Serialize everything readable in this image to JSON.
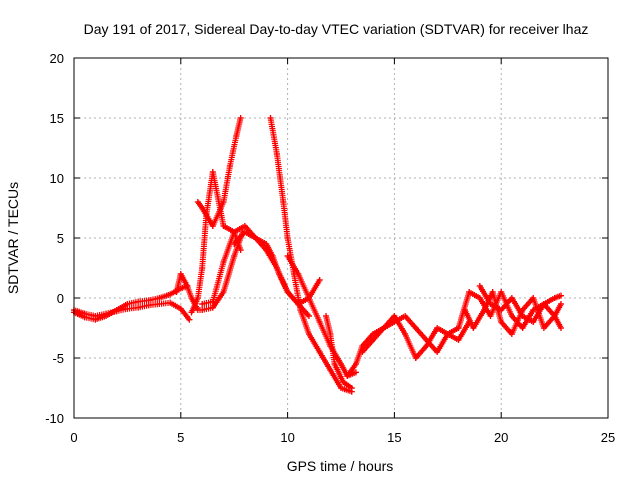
{
  "chart_data": {
    "type": "scatter",
    "title": "Day 191 of 2017, Sidereal Day-to-day VTEC variation (SDTVAR) for receiver lhaz",
    "xlabel": "GPS time / hours",
    "ylabel": "SDTVAR / TECUs",
    "xlim": [
      0,
      25
    ],
    "ylim": [
      -10,
      20
    ],
    "x_ticks": [
      0,
      5,
      10,
      15,
      20,
      25
    ],
    "y_ticks": [
      -10,
      -5,
      0,
      5,
      10,
      15,
      20
    ],
    "x_tick_labels": [
      "0",
      "5",
      "10",
      "15",
      "20",
      "25"
    ],
    "y_tick_labels": [
      "-10",
      "-5",
      "0",
      "5",
      "10",
      "15",
      "20"
    ],
    "grid": true,
    "legend": "none",
    "marker": "+",
    "color": "#ff0000",
    "series": [
      {
        "name": "track-1",
        "x": [
          0.0,
          0.5,
          1.0,
          1.5,
          2.0,
          2.5,
          3.0,
          3.5,
          4.0,
          4.5,
          5.0,
          5.3
        ],
        "y": [
          -1.2,
          -1.6,
          -1.8,
          -1.5,
          -1.0,
          -0.5,
          -0.3,
          -0.2,
          0.0,
          0.3,
          0.8,
          1.0
        ]
      },
      {
        "name": "track-2",
        "x": [
          0.0,
          0.5,
          1.0,
          1.5,
          2.0,
          2.5,
          3.0,
          3.5,
          4.0,
          4.5,
          5.0,
          5.4
        ],
        "y": [
          -1.0,
          -1.3,
          -1.5,
          -1.3,
          -1.1,
          -0.9,
          -0.8,
          -0.6,
          -0.5,
          -0.4,
          -0.9,
          -1.8
        ]
      },
      {
        "name": "track-3",
        "x": [
          4.8,
          5.0,
          5.3,
          5.5,
          5.8,
          6.0,
          6.5,
          7.0,
          7.5,
          7.9
        ],
        "y": [
          0.5,
          2.0,
          1.0,
          0.0,
          -1.0,
          -1.0,
          -0.8,
          0.5,
          3.5,
          5.5
        ]
      },
      {
        "name": "track-4",
        "x": [
          5.5,
          5.8,
          6.0,
          6.2,
          6.5,
          7.0,
          7.5,
          7.8
        ],
        "y": [
          -1.2,
          0.0,
          2.5,
          7.0,
          10.5,
          6.0,
          5.5,
          4.0
        ]
      },
      {
        "name": "track-5",
        "x": [
          5.8,
          6.0,
          6.5,
          7.0,
          7.3,
          7.6,
          7.8
        ],
        "y": [
          8.0,
          7.5,
          6.0,
          8.0,
          11.0,
          13.5,
          15.0
        ]
      },
      {
        "name": "track-6",
        "x": [
          6.0,
          6.5,
          7.0,
          7.5,
          8.0,
          8.5,
          9.0,
          9.5,
          10.0,
          10.5,
          11.0,
          11.5
        ],
        "y": [
          -0.5,
          -0.3,
          3.0,
          5.5,
          6.0,
          5.0,
          4.0,
          2.5,
          0.5,
          -0.5,
          0.0,
          1.5
        ]
      },
      {
        "name": "track-7",
        "x": [
          7.5,
          8.0,
          8.5,
          9.0,
          9.3,
          9.6,
          10.0,
          10.5,
          11.0
        ],
        "y": [
          4.5,
          5.5,
          5.0,
          4.5,
          3.5,
          2.0,
          0.5,
          -0.5,
          -1.5
        ]
      },
      {
        "name": "track-8",
        "x": [
          9.2,
          9.5,
          9.8,
          10.0,
          10.3,
          10.6,
          11.0,
          11.5,
          12.0,
          12.5,
          13.0
        ],
        "y": [
          15.0,
          12.0,
          8.0,
          5.0,
          2.0,
          -1.0,
          -3.0,
          -4.5,
          -6.0,
          -7.5,
          -7.8
        ]
      },
      {
        "name": "track-9",
        "x": [
          10.0,
          10.5,
          11.0,
          11.5,
          12.0,
          12.5,
          12.8,
          13.2
        ],
        "y": [
          3.5,
          2.0,
          0.0,
          -2.0,
          -4.0,
          -5.5,
          -6.5,
          -6.2
        ]
      },
      {
        "name": "track-10",
        "x": [
          11.8,
          12.0,
          12.2,
          12.6,
          13.0
        ],
        "y": [
          -1.5,
          -3.0,
          -5.5,
          -7.0,
          -7.5
        ]
      },
      {
        "name": "track-11",
        "x": [
          12.8,
          13.2,
          13.5,
          14.0,
          14.5,
          15.0,
          15.5,
          16.0,
          16.5,
          17.0,
          17.5,
          18.0,
          18.5
        ],
        "y": [
          -6.5,
          -5.5,
          -4.0,
          -3.0,
          -2.5,
          -1.5,
          -3.0,
          -5.0,
          -4.0,
          -2.5,
          -3.0,
          -3.5,
          -2.0
        ]
      },
      {
        "name": "track-12",
        "x": [
          13.5,
          14.0,
          14.5,
          15.0,
          15.5,
          16.0,
          16.5,
          17.0,
          17.5,
          18.0
        ],
        "y": [
          -4.5,
          -3.5,
          -2.5,
          -2.0,
          -1.5,
          -2.5,
          -3.5,
          -4.5,
          -3.0,
          -2.5
        ]
      },
      {
        "name": "track-13",
        "x": [
          18.0,
          18.5,
          19.0,
          19.5,
          20.0,
          20.5,
          21.0,
          21.5,
          22.0,
          22.5,
          22.8
        ],
        "y": [
          -2.5,
          0.5,
          0.0,
          -1.5,
          0.5,
          -1.5,
          -2.5,
          -1.0,
          -0.5,
          -1.5,
          -2.5
        ]
      },
      {
        "name": "track-14",
        "x": [
          18.3,
          18.7,
          19.2,
          19.6,
          20.0,
          20.5,
          21.0,
          21.5,
          22.0,
          22.5,
          22.8
        ],
        "y": [
          -1.0,
          -2.5,
          -1.0,
          0.5,
          -2.0,
          -3.0,
          -1.0,
          0.0,
          -2.5,
          -1.5,
          -0.5
        ]
      },
      {
        "name": "track-15",
        "x": [
          19.0,
          19.5,
          20.0,
          20.5,
          21.0,
          21.5,
          22.0,
          22.5,
          22.8
        ],
        "y": [
          1.0,
          -0.5,
          -1.0,
          0.0,
          -1.5,
          -2.0,
          -0.5,
          0.0,
          0.2
        ]
      }
    ]
  }
}
